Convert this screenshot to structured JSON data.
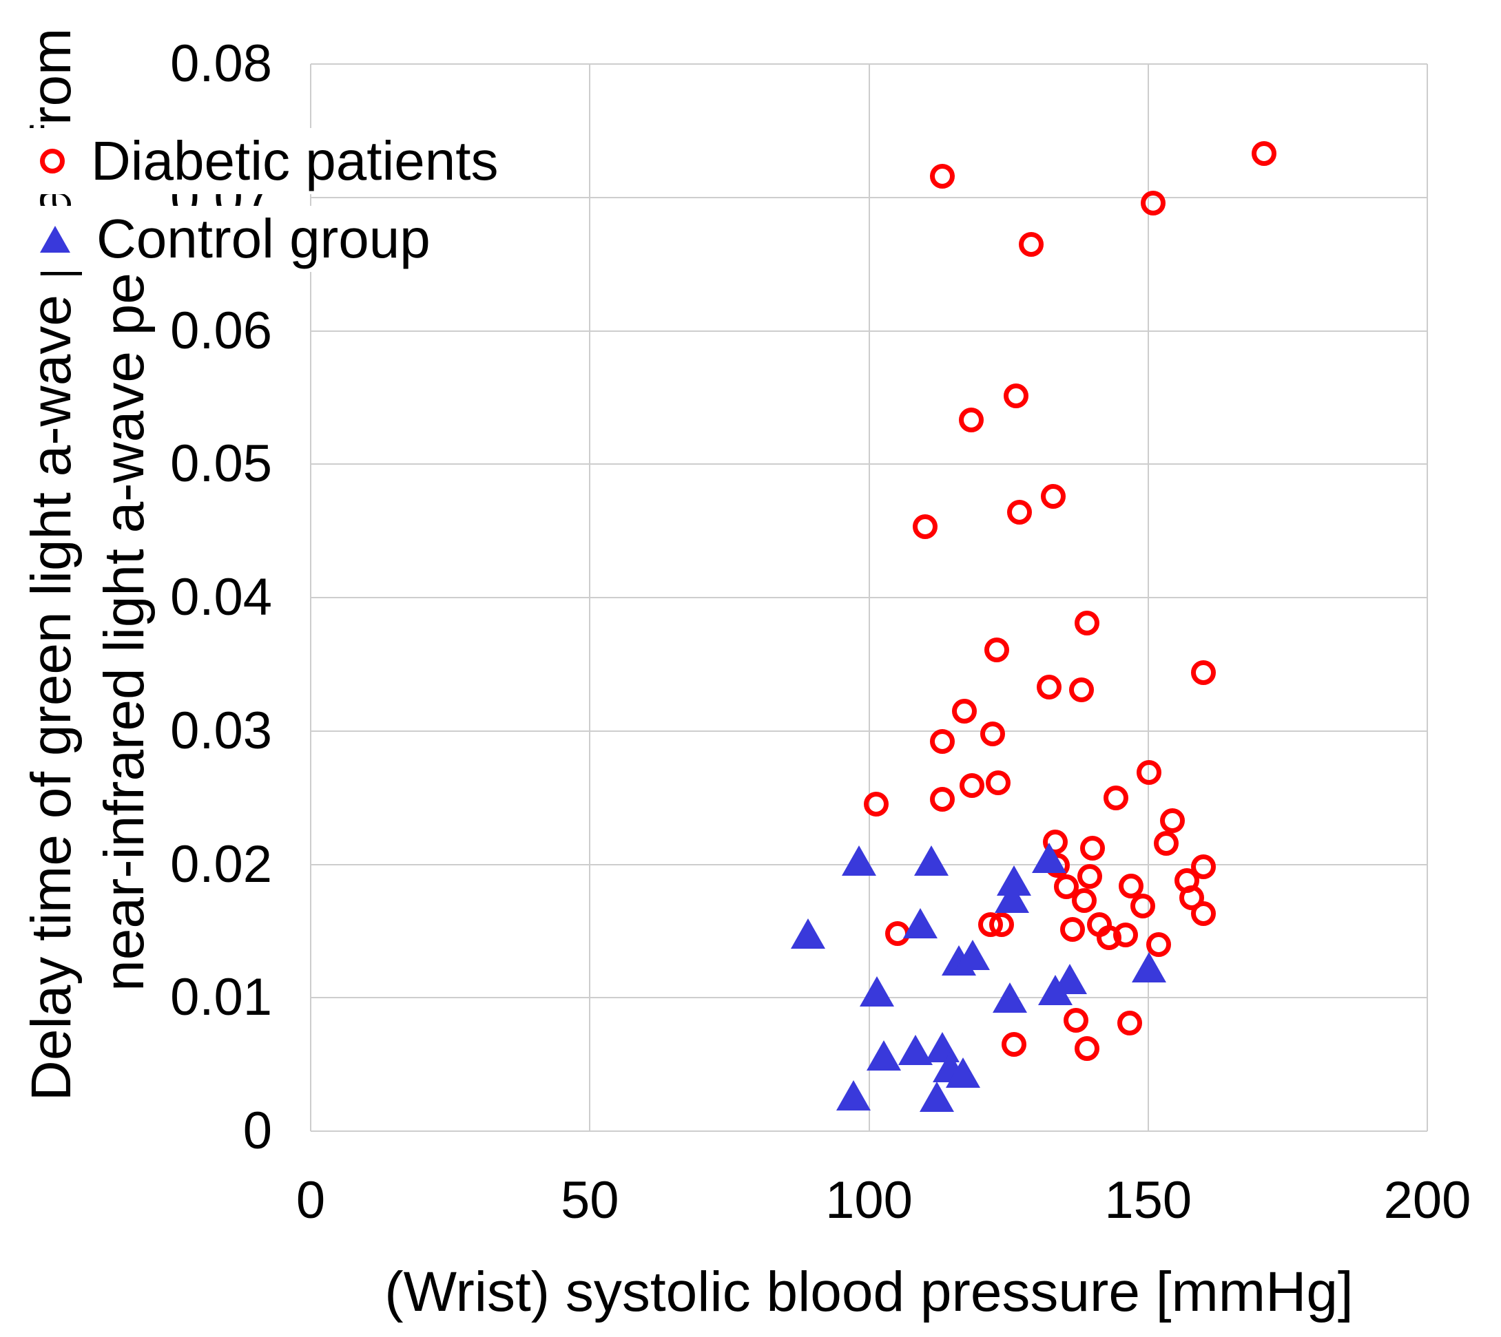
{
  "figure": {
    "background": "#ffffff"
  },
  "colors": {
    "diabetic": "#ff0000",
    "control": "#3939db",
    "gridline": "#cdcdcd",
    "text": "#000000"
  },
  "chart_data": {
    "type": "scatter",
    "title": "",
    "xlabel": "(Wrist) systolic blood pressure [mmHg]",
    "ylabel_line1": "Delay time of green light a-wave peak from",
    "ylabel_line2": "near-infrared light a-wave peak [s]",
    "xlim": [
      0,
      200
    ],
    "ylim": [
      0,
      0.08
    ],
    "grid": true,
    "legend_position": "top-left-inside",
    "xticks": {
      "values": [
        0,
        50,
        100,
        150,
        200
      ],
      "labels": [
        "0",
        "50",
        "100",
        "150",
        "200"
      ]
    },
    "yticks": {
      "values": [
        0,
        0.01,
        0.02,
        0.03,
        0.04,
        0.05,
        0.06,
        0.07,
        0.08
      ],
      "labels": [
        "0",
        "0.01",
        "0.02",
        "0.03",
        "0.04",
        "0.05",
        "0.06",
        "0.07",
        "0.08"
      ]
    },
    "series": [
      {
        "name": "Diabetic patients",
        "marker": "circle",
        "color": "#ff0000",
        "points": [
          [
            113.2,
            0.0716
          ],
          [
            170.8,
            0.0733
          ],
          [
            150.9,
            0.0696
          ],
          [
            129.1,
            0.0665
          ],
          [
            126.3,
            0.0551
          ],
          [
            118.3,
            0.0533
          ],
          [
            133.0,
            0.0476
          ],
          [
            127.0,
            0.0464
          ],
          [
            110.1,
            0.0453
          ],
          [
            139.0,
            0.0381
          ],
          [
            122.9,
            0.0361
          ],
          [
            159.9,
            0.0344
          ],
          [
            132.3,
            0.0333
          ],
          [
            138.1,
            0.0331
          ],
          [
            117.1,
            0.0315
          ],
          [
            122.1,
            0.0298
          ],
          [
            113.2,
            0.0292
          ],
          [
            123.1,
            0.0261
          ],
          [
            118.4,
            0.0259
          ],
          [
            113.2,
            0.0249
          ],
          [
            101.3,
            0.0245
          ],
          [
            150.1,
            0.0269
          ],
          [
            144.2,
            0.025
          ],
          [
            154.4,
            0.0233
          ],
          [
            153.3,
            0.0216
          ],
          [
            133.4,
            0.0217
          ],
          [
            140.0,
            0.0212
          ],
          [
            133.8,
            0.0199
          ],
          [
            139.5,
            0.0191
          ],
          [
            135.3,
            0.0183
          ],
          [
            146.9,
            0.0184
          ],
          [
            149.1,
            0.0169
          ],
          [
            138.5,
            0.0173
          ],
          [
            159.9,
            0.0198
          ],
          [
            157.0,
            0.0188
          ],
          [
            157.8,
            0.0175
          ],
          [
            159.9,
            0.0163
          ],
          [
            141.3,
            0.0155
          ],
          [
            143.0,
            0.0145
          ],
          [
            145.9,
            0.0147
          ],
          [
            151.9,
            0.014
          ],
          [
            136.5,
            0.0151
          ],
          [
            121.8,
            0.0155
          ],
          [
            123.7,
            0.0155
          ],
          [
            105.1,
            0.0148
          ],
          [
            137.1,
            0.0083
          ],
          [
            146.7,
            0.0081
          ],
          [
            126.0,
            0.0065
          ],
          [
            139.0,
            0.0062
          ]
        ]
      },
      {
        "name": "Control group",
        "marker": "triangle",
        "color": "#3939db",
        "points": [
          [
            98.2,
            0.0203
          ],
          [
            111.2,
            0.0203
          ],
          [
            132.3,
            0.0205
          ],
          [
            126.0,
            0.0188
          ],
          [
            125.6,
            0.0175
          ],
          [
            89.1,
            0.0148
          ],
          [
            109.2,
            0.0156
          ],
          [
            116.1,
            0.0128
          ],
          [
            118.6,
            0.0132
          ],
          [
            150.1,
            0.0123
          ],
          [
            101.4,
            0.0105
          ],
          [
            125.2,
            0.01
          ],
          [
            133.4,
            0.0106
          ],
          [
            136.0,
            0.0114
          ],
          [
            102.6,
            0.0057
          ],
          [
            108.3,
            0.0061
          ],
          [
            113.2,
            0.0063
          ],
          [
            114.5,
            0.0048
          ],
          [
            116.8,
            0.0044
          ],
          [
            97.2,
            0.0027
          ],
          [
            112.2,
            0.0026
          ]
        ]
      }
    ]
  }
}
